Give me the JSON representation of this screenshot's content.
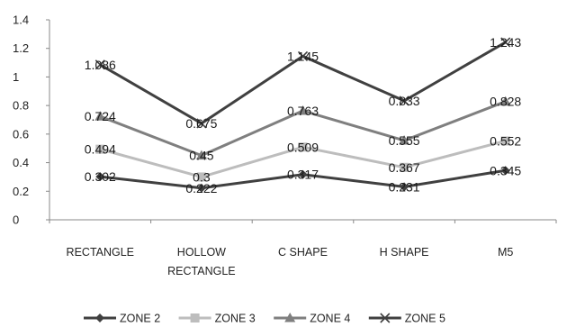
{
  "chart_data": {
    "type": "line",
    "title": "",
    "xlabel": "",
    "ylabel": "",
    "categories": [
      [
        "RECTANGLE"
      ],
      [
        "HOLLOW",
        "RECTANGLE"
      ],
      [
        "C SHAPE"
      ],
      [
        "H SHAPE"
      ],
      [
        "M5"
      ]
    ],
    "ylim": [
      0,
      1.4
    ],
    "yticks": [
      "0",
      "0.2",
      "0.4",
      "0.6",
      "0.8",
      "1",
      "1.2",
      "1.4"
    ],
    "grid": false,
    "legend_position": "bottom",
    "series": [
      {
        "name": "ZONE 2",
        "values": [
          0.302,
          0.222,
          0.317,
          0.231,
          0.345
        ],
        "value_labels": [
          "0.302",
          "0.222",
          "0.317",
          "0.231",
          "0.345"
        ],
        "color": "#404040",
        "marker": "diamond"
      },
      {
        "name": "ZONE 3",
        "values": [
          0.494,
          0.3,
          0.509,
          0.367,
          0.552
        ],
        "value_labels": [
          "0.494",
          "0.3",
          "0.509",
          "0.367",
          "0.552"
        ],
        "color": "#bdbdbd",
        "marker": "square"
      },
      {
        "name": "ZONE 4",
        "values": [
          0.724,
          0.45,
          0.763,
          0.555,
          0.828
        ],
        "value_labels": [
          "0.724",
          "0.45",
          "0.763",
          "0.555",
          "0.828"
        ],
        "color": "#7f7f7f",
        "marker": "triangle"
      },
      {
        "name": "ZONE 5",
        "values": [
          1.086,
          0.675,
          1.145,
          0.833,
          1.243
        ],
        "value_labels": [
          "1.086",
          "0.675",
          "1.145",
          "0.833",
          "1.243"
        ],
        "color": "#404040",
        "marker": "x"
      }
    ]
  }
}
